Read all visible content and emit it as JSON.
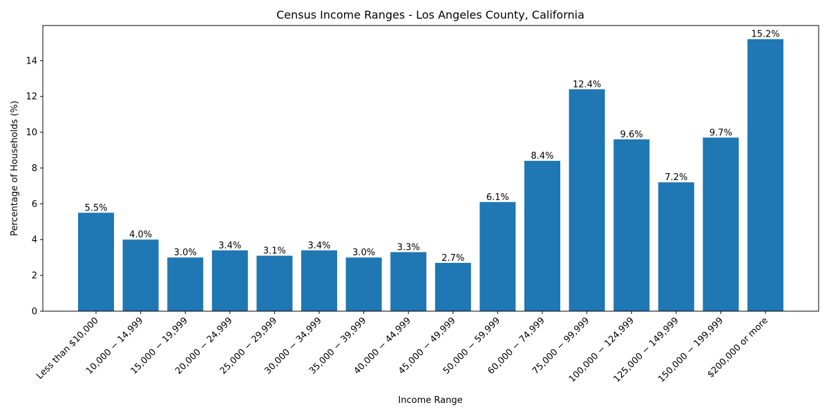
{
  "chart_data": {
    "type": "bar",
    "title": "Census Income Ranges - Los Angeles County, California",
    "xlabel": "Income Range",
    "ylabel": "Percentage of Households (%)",
    "ylim": [
      0,
      15.96
    ],
    "yticks": [
      0,
      2,
      4,
      6,
      8,
      10,
      12,
      14
    ],
    "grid": false,
    "bar_color": "#1f77b4",
    "categories": [
      "Less than $10,000",
      "10,000 − 14,999",
      "15,000 − 19,999",
      "20,000 − 24,999",
      "25,000 − 29,999",
      "30,000 − 34,999",
      "35,000 − 39,999",
      "40,000 − 44,999",
      "45,000 − 49,999",
      "50,000 − 59,999",
      "60,000 − 74,999",
      "75,000 − 99,999",
      "100,000 − 124,999",
      "125,000 − 149,999",
      "150,000 − 199,999",
      "$200,000 or more"
    ],
    "values": [
      5.5,
      4.0,
      3.0,
      3.4,
      3.1,
      3.4,
      3.0,
      3.3,
      2.7,
      6.1,
      8.4,
      12.4,
      9.6,
      7.2,
      9.7,
      15.2
    ],
    "data_labels": [
      "5.5%",
      "4.0%",
      "3.0%",
      "3.4%",
      "3.1%",
      "3.4%",
      "3.0%",
      "3.3%",
      "2.7%",
      "6.1%",
      "8.4%",
      "12.4%",
      "9.6%",
      "7.2%",
      "9.7%",
      "15.2%"
    ]
  }
}
